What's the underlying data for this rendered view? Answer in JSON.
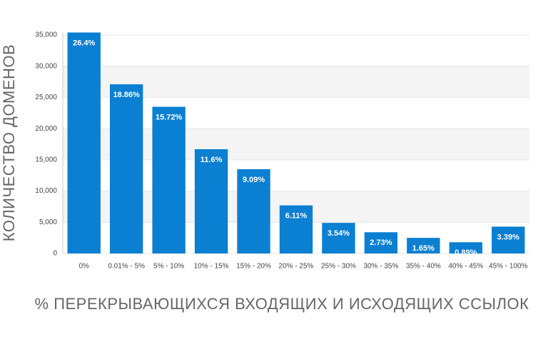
{
  "chart_data": {
    "type": "bar",
    "y_label": "КОЛИЧЕСТВО ДОМЕНОВ",
    "x_label": "% ПЕРЕКРЫВАЮЩИХСЯ ВХОДЯЩИХ И ИСХОДЯЩИХ ССЫЛОК",
    "categories": [
      "0%",
      "0.01% - 5%",
      "5% - 10%",
      "10% - 15%",
      "15% - 20%",
      "20% - 25%",
      "25% - 30%",
      "30% - 35%",
      "35% - 40%",
      "40% - 45%",
      "45% - 100%"
    ],
    "values": [
      35400,
      27100,
      23500,
      16700,
      13500,
      7700,
      4900,
      3400,
      2500,
      1800,
      4300
    ],
    "bar_labels": [
      "26.4%",
      "18.86%",
      "15.72%",
      "11.6%",
      "9.09%",
      "6.11%",
      "3.54%",
      "2.73%",
      "1.65%",
      "0.89%",
      "3.39%"
    ],
    "color": "#0b7fd2",
    "ylim": [
      0,
      35000
    ],
    "yticks": [
      0,
      {
        "value": 5000,
        "label": "5,000"
      },
      {
        "value": 10000,
        "label": "10,000"
      },
      {
        "value": 15000,
        "label": "15,000"
      },
      {
        "value": 20000,
        "label": "20,000"
      },
      {
        "value": 25000,
        "label": "25,000"
      },
      {
        "value": 30000,
        "label": "30,000"
      },
      {
        "value": 35000,
        "label": "35,000"
      }
    ],
    "grid": true
  }
}
